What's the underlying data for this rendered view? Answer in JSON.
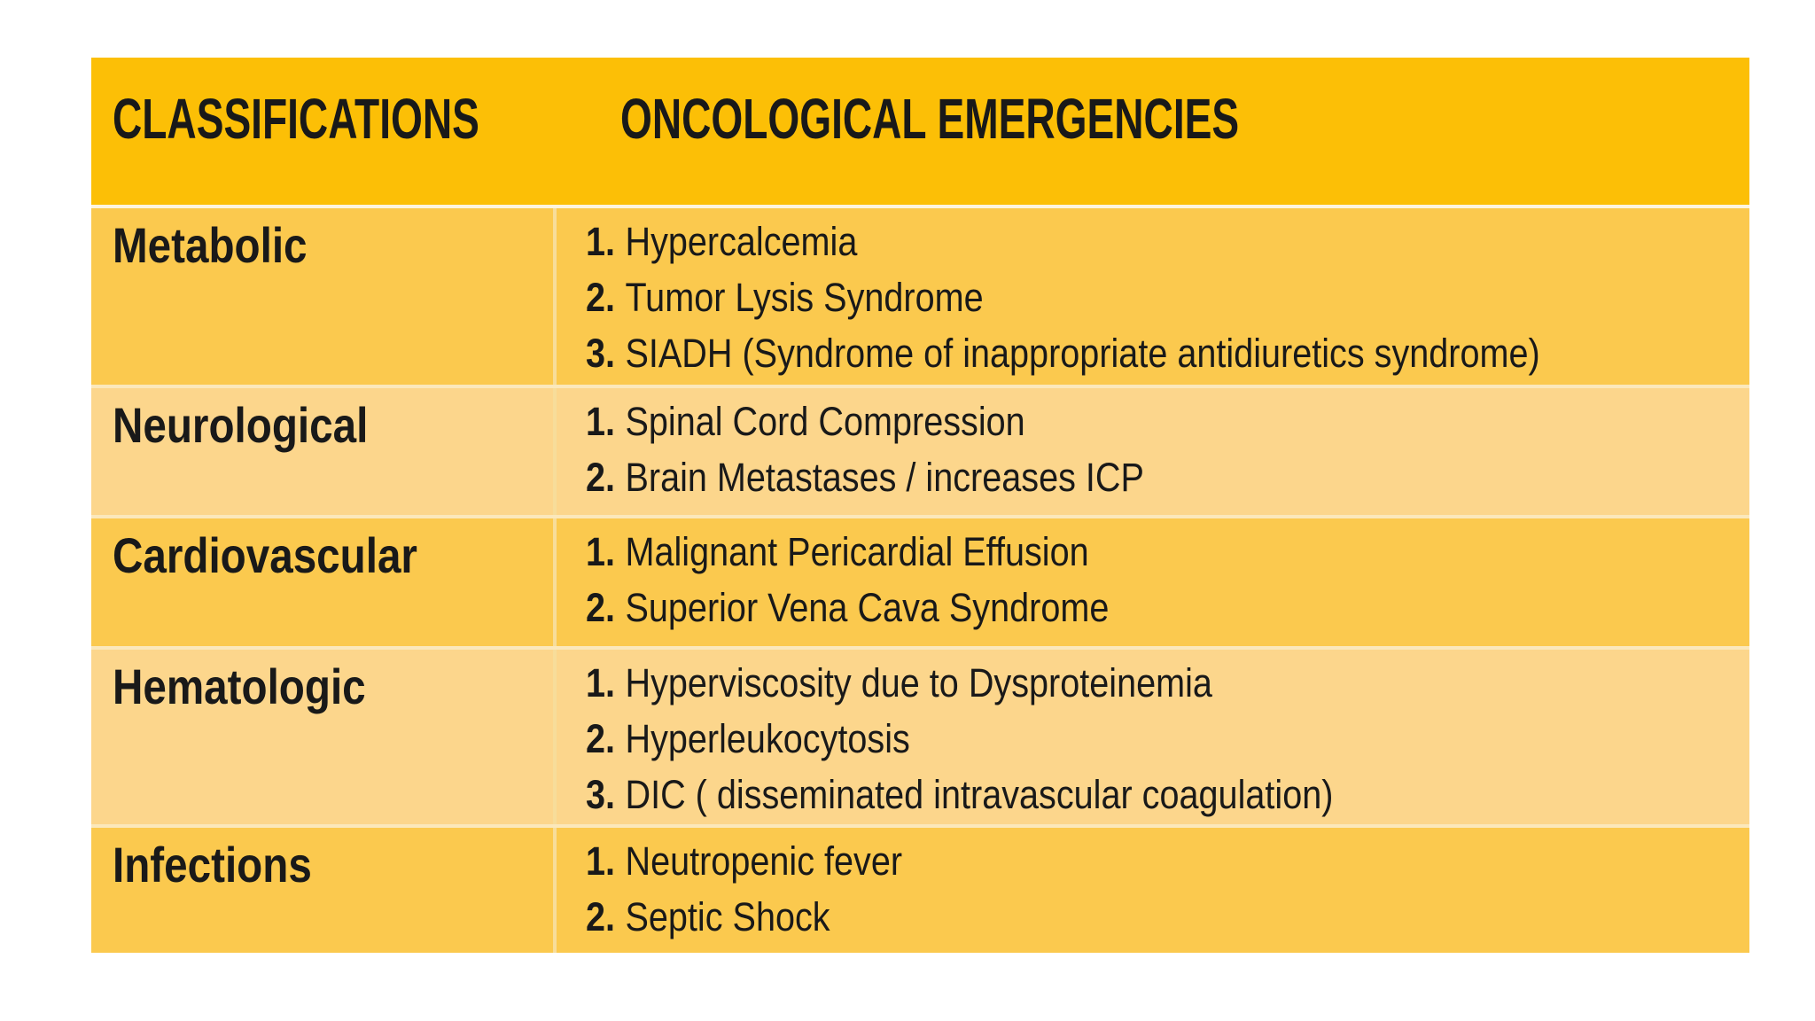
{
  "colors": {
    "header_bg": "#fcbf06",
    "row_dark": "#fbc94e",
    "row_light": "#fcd68c",
    "header_divider": "#fdf4de",
    "row_divider": "#fbe8bb",
    "col_divider": "#f7dd9a",
    "text": "#191919",
    "page_bg": "#ffffff"
  },
  "table": {
    "header": {
      "classifications_label": "CLASSIFICATIONS",
      "emergencies_label": "ONCOLOGICAL EMERGENCIES"
    },
    "rows": [
      {
        "category": "Metabolic",
        "items": [
          {
            "num": "1.",
            "text": "Hypercalcemia"
          },
          {
            "num": "2.",
            "text": "Tumor Lysis Syndrome"
          },
          {
            "num": "3.",
            "text": "SIADH (Syndrome of inappropriate antidiuretics syndrome)"
          }
        ]
      },
      {
        "category": "Neurological",
        "items": [
          {
            "num": "1.",
            "text": "Spinal Cord Compression"
          },
          {
            "num": "2.",
            "text": "Brain Metastases / increases ICP"
          }
        ]
      },
      {
        "category": "Cardiovascular",
        "items": [
          {
            "num": "1.",
            "text": "Malignant Pericardial Effusion"
          },
          {
            "num": "2.",
            "text": "Superior Vena Cava Syndrome"
          }
        ]
      },
      {
        "category": "Hematologic",
        "items": [
          {
            "num": "1.",
            "text": "Hyperviscosity due to Dysproteinemia"
          },
          {
            "num": "2.",
            "text": "Hyperleukocytosis"
          },
          {
            "num": "3.",
            "text": "DIC ( disseminated intravascular coagulation)"
          }
        ]
      },
      {
        "category": "Infections",
        "items": [
          {
            "num": "1.",
            "text": "Neutropenic fever"
          },
          {
            "num": "2.",
            "text": "Septic Shock"
          }
        ]
      }
    ]
  }
}
